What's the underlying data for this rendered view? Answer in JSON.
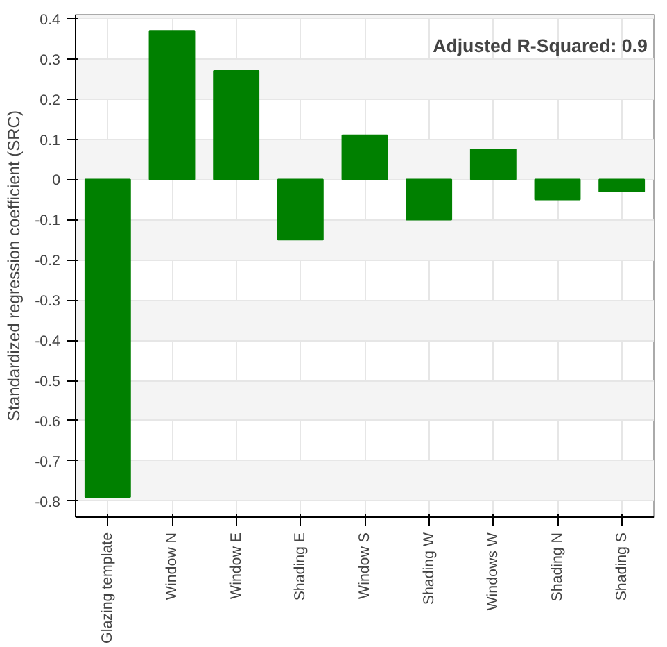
{
  "chart_data": {
    "type": "bar",
    "ylabel": "Standardized regression coefficient (SRC)",
    "categories": [
      "Glazing template",
      "Window N",
      "Window E",
      "Shading E",
      "Window S",
      "Shading W",
      "Windows W",
      "Shading N",
      "Shading S"
    ],
    "values": [
      -0.79,
      0.37,
      0.27,
      -0.15,
      0.11,
      -0.1,
      0.075,
      -0.05,
      -0.03
    ],
    "color": "#008000",
    "ylim": [
      -0.84,
      0.41
    ],
    "yticks": [
      -0.8,
      -0.7,
      -0.6,
      -0.5,
      -0.4,
      -0.3,
      -0.2,
      -0.1,
      0,
      0.1,
      0.2,
      0.3,
      0.4
    ],
    "grid": true,
    "annotations": [
      "Adjusted R-Squared: 0.9"
    ]
  }
}
